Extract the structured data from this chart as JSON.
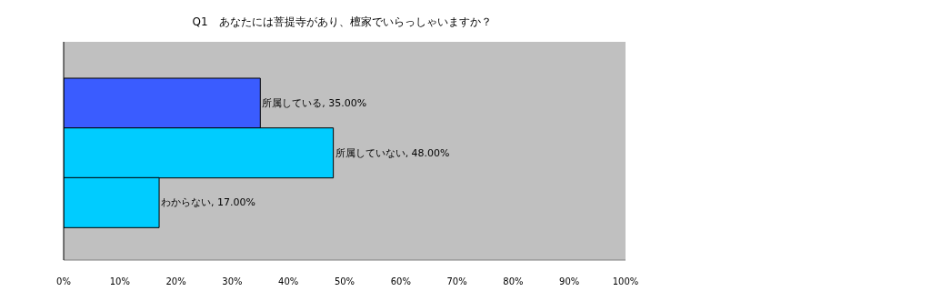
{
  "chart_data": {
    "type": "bar",
    "orientation": "horizontal",
    "title": "Q1　あなたには菩提寺があり、檀家でいらっしゃいますか？",
    "categories": [
      null,
      null,
      null
    ],
    "values": [
      35,
      48,
      17
    ],
    "colors": [
      "#3a5cff",
      "#00ccff",
      "#00ccff"
    ],
    "value_labels": [
      "所属している, 35.00%",
      "所属していない, 48.00%",
      "わからない, 17.00%"
    ],
    "xlim": [
      0,
      100
    ],
    "xticks": [
      {
        "value": 0,
        "label": "0%"
      },
      {
        "value": 10,
        "label": "10%"
      },
      {
        "value": 20,
        "label": "20%"
      },
      {
        "value": 30,
        "label": "30%"
      },
      {
        "value": 40,
        "label": "40%"
      },
      {
        "value": 50,
        "label": "50%"
      },
      {
        "value": 60,
        "label": "60%"
      },
      {
        "value": 70,
        "label": "70%"
      },
      {
        "value": 80,
        "label": "80%"
      },
      {
        "value": 90,
        "label": "90%"
      },
      {
        "value": 100,
        "label": "100%"
      }
    ],
    "tick_labels": "x",
    "grid": false
  }
}
